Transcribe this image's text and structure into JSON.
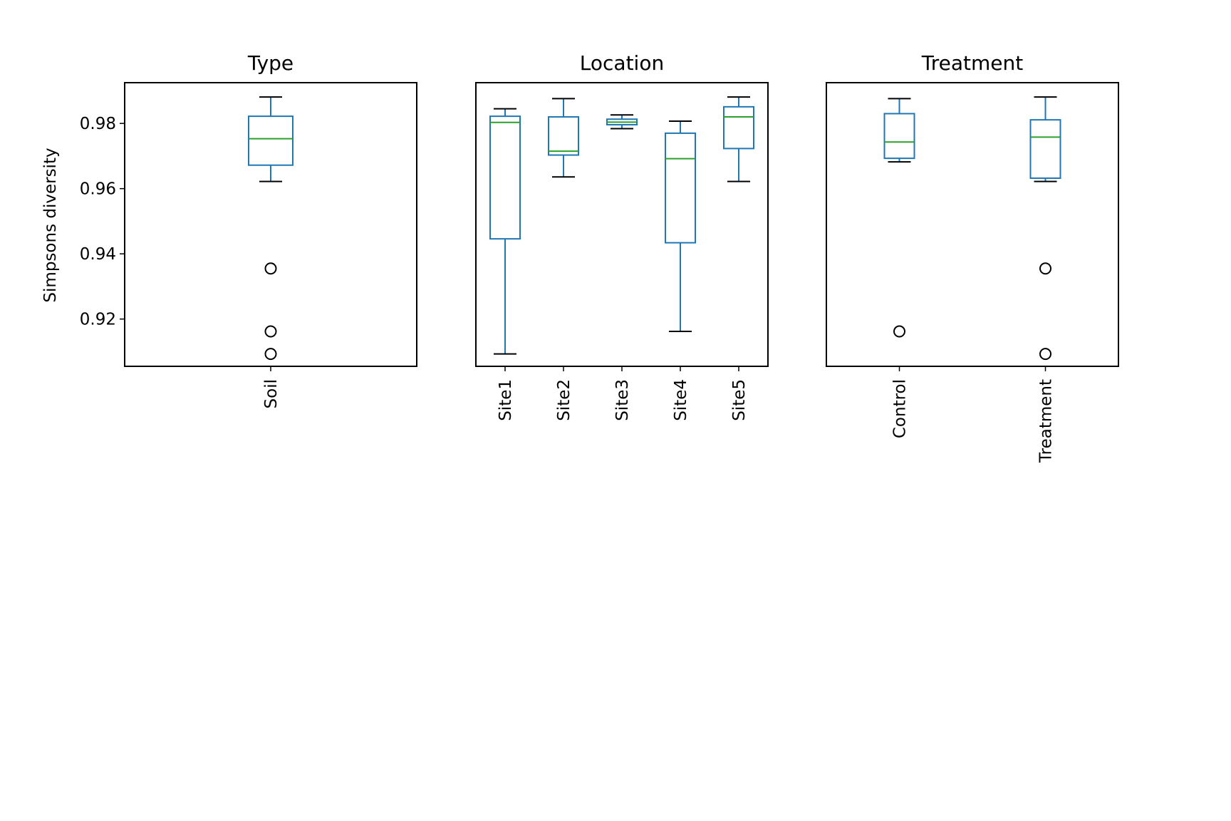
{
  "figure": {
    "ylabel": "Simpsons diversity",
    "y_ticks": [
      "0.92",
      "0.94",
      "0.96",
      "0.98"
    ],
    "colors": {
      "box": "#1f77b4",
      "median": "#2ca02c",
      "whisker_cap": "#000000",
      "flier": "#000000",
      "frame": "#000000"
    }
  },
  "chart_data": [
    {
      "type": "box",
      "title": "Type",
      "ylim": [
        0.9055,
        0.9925
      ],
      "y_ticks": [
        0.92,
        0.94,
        0.96,
        0.98
      ],
      "ylabel": "Simpsons diversity",
      "categories": [
        "Soil"
      ],
      "boxes": [
        {
          "whisker_low": 0.9622,
          "q1": 0.9672,
          "median": 0.9753,
          "q3": 0.9822,
          "whisker_high": 0.9881,
          "fliers": [
            0.9355,
            0.9162,
            0.9093
          ]
        }
      ]
    },
    {
      "type": "box",
      "title": "Location",
      "ylim": [
        0.9055,
        0.9925
      ],
      "y_ticks": [
        0.92,
        0.94,
        0.96,
        0.98
      ],
      "categories": [
        "Site1",
        "Site2",
        "Site3",
        "Site4",
        "Site5"
      ],
      "boxes": [
        {
          "whisker_low": 0.9093,
          "q1": 0.9446,
          "median": 0.9803,
          "q3": 0.9822,
          "whisker_high": 0.9845,
          "fliers": []
        },
        {
          "whisker_low": 0.9636,
          "q1": 0.9703,
          "median": 0.9715,
          "q3": 0.982,
          "whisker_high": 0.9876,
          "fliers": []
        },
        {
          "whisker_low": 0.9784,
          "q1": 0.9796,
          "median": 0.9804,
          "q3": 0.9813,
          "whisker_high": 0.9826,
          "fliers": []
        },
        {
          "whisker_low": 0.9162,
          "q1": 0.9434,
          "median": 0.9692,
          "q3": 0.977,
          "whisker_high": 0.9807,
          "fliers": []
        },
        {
          "whisker_low": 0.9622,
          "q1": 0.9723,
          "median": 0.982,
          "q3": 0.9851,
          "whisker_high": 0.9881,
          "fliers": []
        }
      ]
    },
    {
      "type": "box",
      "title": "Treatment",
      "ylim": [
        0.9055,
        0.9925
      ],
      "y_ticks": [
        0.92,
        0.94,
        0.96,
        0.98
      ],
      "categories": [
        "Control",
        "Treatment"
      ],
      "boxes": [
        {
          "whisker_low": 0.9682,
          "q1": 0.9693,
          "median": 0.9743,
          "q3": 0.983,
          "whisker_high": 0.9876,
          "fliers": [
            0.9162
          ]
        },
        {
          "whisker_low": 0.9622,
          "q1": 0.9632,
          "median": 0.9758,
          "q3": 0.9811,
          "whisker_high": 0.9881,
          "fliers": [
            0.9355,
            0.9093
          ]
        }
      ]
    }
  ]
}
